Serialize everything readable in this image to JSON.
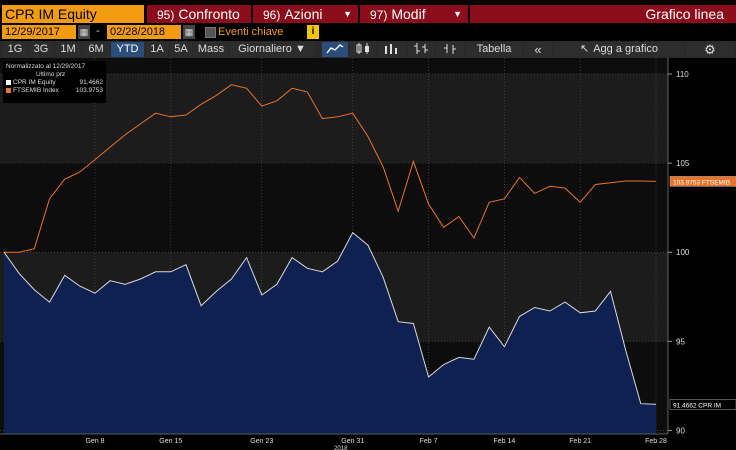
{
  "toolbar": {
    "ticker": "CPR IM Equity",
    "menus": [
      {
        "num": "95)",
        "label": "Confronto"
      },
      {
        "num": "96)",
        "label": "Azioni"
      },
      {
        "num": "97)",
        "label": "Modif"
      }
    ],
    "title": "Grafico linea"
  },
  "range": {
    "start": "12/29/2017",
    "separator": "-",
    "end": "02/28/2018",
    "events_label": "Eventi chiave",
    "info": "i"
  },
  "controls": {
    "periods": [
      "1G",
      "3G",
      "1M",
      "6M",
      "YTD",
      "1A",
      "5A",
      "Mass"
    ],
    "selected_period": "YTD",
    "frequency": "Giornaliero ▼",
    "table": "Tabella",
    "collapse": "«",
    "add_chart": "Agg a grafico"
  },
  "legend": {
    "line1": "Normalizzato al 12/29/2017",
    "line2": "Ultimo prz",
    "items": [
      {
        "name": "CPR IM Equity",
        "value": "91.4662",
        "color": "#ffffff"
      },
      {
        "name": "FTSEMIB Index",
        "value": "103.9753",
        "color": "#e8732a"
      }
    ]
  },
  "chart_data": {
    "type": "area",
    "x": [
      "Dec 29",
      "Jan 1",
      "Jan 2",
      "Jan 3",
      "Jan 4",
      "Jan 5",
      "Jan 8",
      "Jan 9",
      "Jan 10",
      "Jan 11",
      "Jan 12",
      "Jan 15",
      "Jan 16",
      "Jan 17",
      "Jan 18",
      "Jan 19",
      "Jan 22",
      "Jan 23",
      "Jan 24",
      "Jan 25",
      "Jan 26",
      "Jan 29",
      "Jan 30",
      "Jan 31",
      "Feb 1",
      "Feb 2",
      "Feb 5",
      "Feb 6",
      "Feb 7",
      "Feb 8",
      "Feb 9",
      "Feb 12",
      "Feb 13",
      "Feb 14",
      "Feb 15",
      "Feb 16",
      "Feb 19",
      "Feb 20",
      "Feb 21",
      "Feb 22",
      "Feb 23",
      "Feb 26",
      "Feb 27",
      "Feb 28"
    ],
    "xlabels": [
      {
        "label": "Gen 8",
        "index": 6
      },
      {
        "label": "Gen 15",
        "index": 11
      },
      {
        "label": "Gen 23",
        "index": 17
      },
      {
        "label": "Gen 31",
        "index": 23
      },
      {
        "label": "Feb 7",
        "index": 28
      },
      {
        "label": "Feb 14",
        "index": 33
      },
      {
        "label": "Feb 21",
        "index": 38
      },
      {
        "label": "Feb 28",
        "index": 43
      }
    ],
    "year_label": {
      "label": "2018",
      "index": 23
    },
    "series": [
      {
        "name": "CPR IM Equity",
        "color": "#ffffff",
        "values": [
          100.0,
          98.8,
          97.9,
          97.2,
          98.7,
          98.1,
          97.7,
          98.4,
          98.2,
          98.5,
          98.9,
          98.9,
          99.3,
          97.0,
          97.8,
          98.5,
          99.7,
          97.6,
          98.2,
          99.7,
          99.1,
          98.9,
          99.5,
          101.1,
          100.4,
          98.6,
          96.1,
          96.0,
          93.0,
          93.7,
          94.1,
          94.0,
          95.8,
          94.7,
          96.4,
          96.9,
          96.7,
          97.2,
          96.6,
          96.7,
          97.8,
          94.5,
          91.5,
          91.4662
        ],
        "last_label": "91.4662  CPR IM"
      },
      {
        "name": "FTSEMIB Index",
        "color": "#e8732a",
        "values": [
          100.0,
          100.0,
          100.2,
          103.0,
          104.1,
          104.5,
          105.2,
          105.9,
          106.6,
          107.2,
          107.8,
          107.6,
          107.7,
          108.3,
          108.8,
          109.4,
          109.2,
          108.2,
          108.5,
          109.2,
          109.0,
          107.5,
          107.6,
          107.8,
          106.5,
          104.8,
          102.3,
          105.1,
          102.7,
          101.4,
          102.0,
          100.8,
          102.8,
          103.0,
          104.2,
          103.3,
          103.7,
          103.6,
          102.8,
          103.8,
          103.9,
          104.0,
          104.0,
          103.9753
        ],
        "last_label": "103.9753 FTSEMIB"
      }
    ],
    "yticks": [
      90,
      95,
      100,
      105,
      110
    ],
    "ylim": [
      89.8,
      110.9
    ],
    "grid": true,
    "legend": "top-left"
  }
}
